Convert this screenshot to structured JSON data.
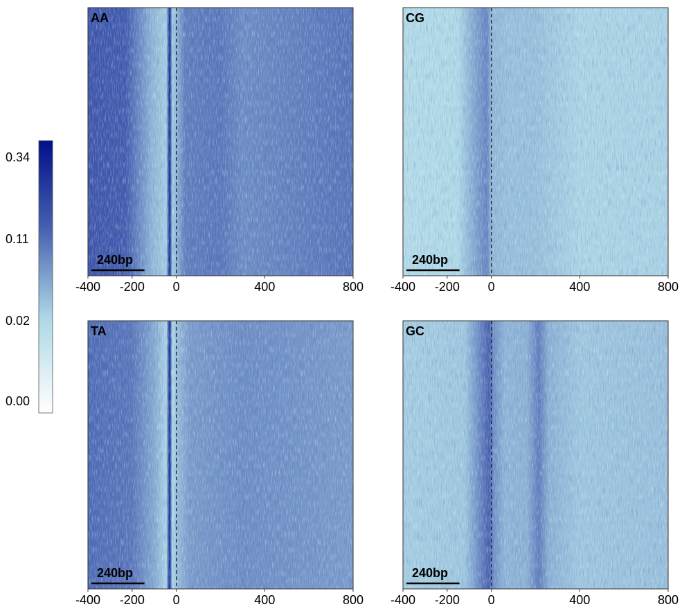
{
  "chart_data": {
    "type": "heatmap",
    "x_ticks": [
      -400,
      -200,
      0,
      400,
      800
    ],
    "xlim": [
      -400,
      800
    ],
    "reference_line_x": 0,
    "scale_bar_label": "240bp",
    "scale_bar_length": 240,
    "colorbar": {
      "tick_labels": [
        "0.00",
        "0.02",
        "0.11",
        "0.34"
      ],
      "colors": [
        "#ffffff",
        "#add8e6",
        "#4660b0",
        "#00108a"
      ]
    },
    "panels": [
      {
        "label": "AA",
        "base_level": 0.66,
        "profile": [
          {
            "x": -400,
            "level": 0.72
          },
          {
            "x": -230,
            "level": 0.7
          },
          {
            "x": -110,
            "level": 0.45
          },
          {
            "x": -45,
            "level": 0.38
          },
          {
            "x": -30,
            "level": 0.95
          },
          {
            "x": -18,
            "level": 0.38
          },
          {
            "x": 0,
            "level": 0.45
          },
          {
            "x": 40,
            "level": 0.6
          },
          {
            "x": 200,
            "level": 0.62
          },
          {
            "x": 300,
            "level": 0.56
          },
          {
            "x": 800,
            "level": 0.63
          }
        ]
      },
      {
        "label": "CG",
        "base_level": 0.34,
        "profile": [
          {
            "x": -400,
            "level": 0.33
          },
          {
            "x": -150,
            "level": 0.35
          },
          {
            "x": -70,
            "level": 0.5
          },
          {
            "x": -20,
            "level": 0.58
          },
          {
            "x": 0,
            "level": 0.44
          },
          {
            "x": 80,
            "level": 0.42
          },
          {
            "x": 200,
            "level": 0.42
          },
          {
            "x": 400,
            "level": 0.36
          },
          {
            "x": 800,
            "level": 0.37
          }
        ]
      },
      {
        "label": "TA",
        "base_level": 0.58,
        "profile": [
          {
            "x": -400,
            "level": 0.65
          },
          {
            "x": -200,
            "level": 0.62
          },
          {
            "x": -100,
            "level": 0.48
          },
          {
            "x": -45,
            "level": 0.36
          },
          {
            "x": -30,
            "level": 0.95
          },
          {
            "x": -18,
            "level": 0.33
          },
          {
            "x": 0,
            "level": 0.42
          },
          {
            "x": 60,
            "level": 0.52
          },
          {
            "x": 300,
            "level": 0.56
          },
          {
            "x": 800,
            "level": 0.52
          }
        ]
      },
      {
        "label": "GC",
        "base_level": 0.4,
        "profile": [
          {
            "x": -400,
            "level": 0.38
          },
          {
            "x": -120,
            "level": 0.4
          },
          {
            "x": -60,
            "level": 0.55
          },
          {
            "x": -10,
            "level": 0.68
          },
          {
            "x": 10,
            "level": 0.55
          },
          {
            "x": 60,
            "level": 0.45
          },
          {
            "x": 160,
            "level": 0.46
          },
          {
            "x": 215,
            "level": 0.6
          },
          {
            "x": 260,
            "level": 0.46
          },
          {
            "x": 400,
            "level": 0.4
          },
          {
            "x": 800,
            "level": 0.42
          }
        ]
      }
    ]
  }
}
